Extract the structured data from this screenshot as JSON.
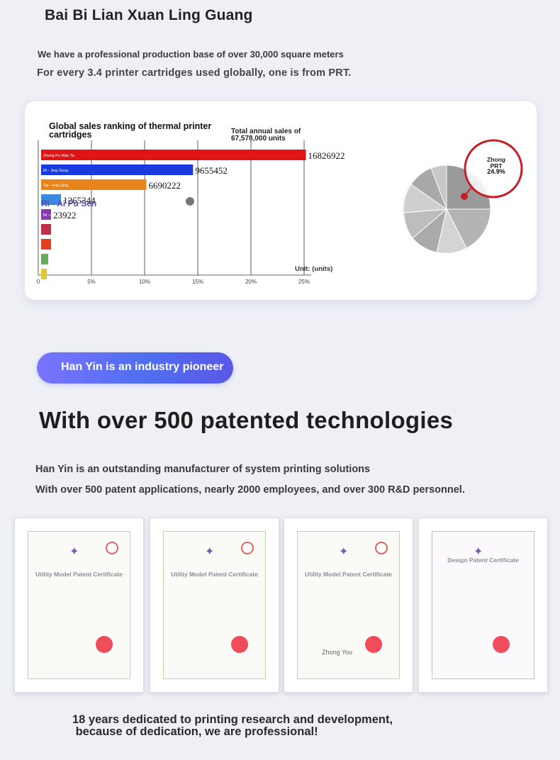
{
  "header": {
    "brand": "Bai Bi Lian Xuan Ling Guang",
    "intro_line1": "We have a professional production base of over 30,000 square meters",
    "intro_line2": "For every 3.4 printer cartridges used globally, one is from PRT."
  },
  "sales_chart": {
    "title": "Global sales ranking of thermal printer cartridges",
    "annotation": "Total annual sales of 67,578,000 units",
    "unit_label": "Unit: (units)"
  },
  "chart_data": {
    "type": "bar",
    "orientation": "horizontal",
    "title": "Global sales ranking of thermal printer cartridges",
    "xlabel": "Unit: (units)",
    "x_ticks": [
      "0",
      "5%",
      "10%",
      "15%",
      "20%",
      "25%"
    ],
    "xlim": [
      0,
      25
    ],
    "categories": [
      "Zhong Pu Wan Ta",
      "Ri - Jing Gong",
      "Tai - Hua Qing",
      "",
      "Ri - Ai Pu Sen",
      "",
      "",
      "",
      ""
    ],
    "values": [
      16826922,
      9655452,
      6690222,
      1265344,
      23922,
      null,
      null,
      null,
      null
    ],
    "value_labels": [
      "16826922",
      "9655452",
      "6690222",
      "1265344",
      "23922",
      "",
      "",
      "",
      ""
    ],
    "bar_colors": [
      "#e01414",
      "#1a3ae0",
      "#e8841a",
      "#3a8ae0",
      "#8a3ab0",
      "#c0304a",
      "#e04020",
      "#68a860",
      "#e0c830"
    ],
    "overlay_labels": [
      "Ri - Ai Pu Sen"
    ]
  },
  "pie_chart": {
    "highlight_label": "Zhong PRT",
    "highlight_value": "24.9%",
    "color_highlight": "#c81e28"
  },
  "pill": {
    "text": "Han Yin is an industry pioneer"
  },
  "section": {
    "headline": "With over 500 patented technologies",
    "desc_line1": "Han Yin is an outstanding manufacturer of system printing solutions",
    "desc_line2": "With over 500 patent applications, nearly 2000 employees, and over 300 R&D personnel."
  },
  "certificates": [
    {
      "label": "Utility Model Patent Certificate",
      "signature": ""
    },
    {
      "label": "Utility Model Patent Certificate",
      "signature": ""
    },
    {
      "label": "Utility Model Patent Certificate",
      "signature": "Zhong You"
    },
    {
      "label": "Design Patent Certificate",
      "signature": ""
    }
  ],
  "closing": {
    "line1": "18 years dedicated to printing research and development,",
    "line2": " because of dedication, we are professional!"
  }
}
